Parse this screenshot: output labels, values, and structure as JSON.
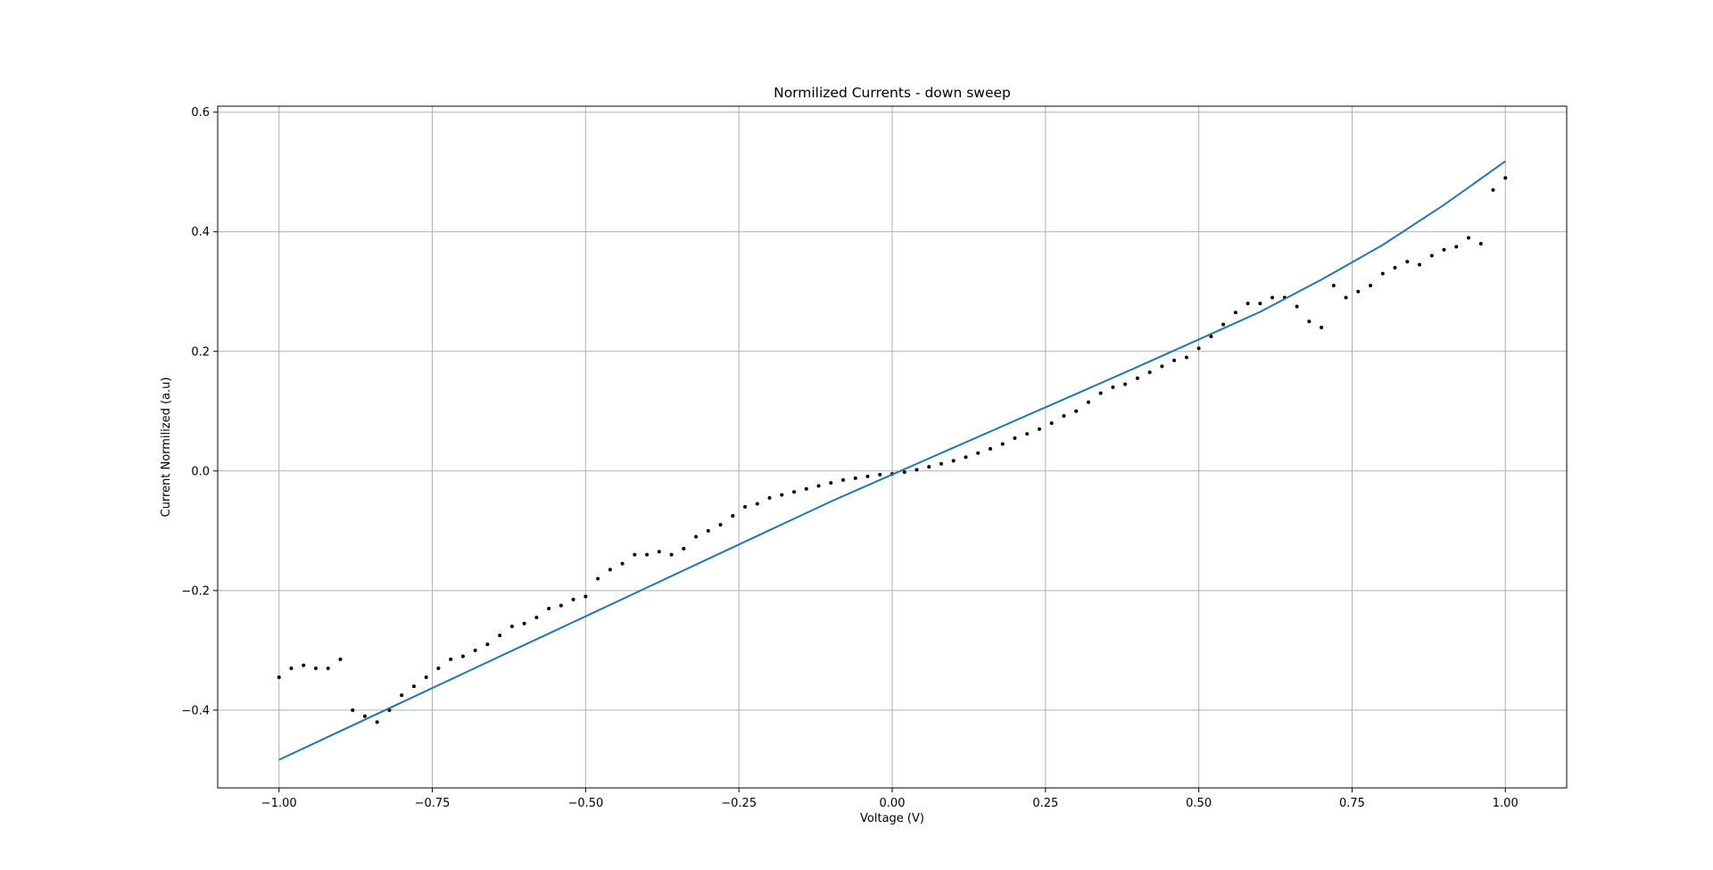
{
  "chart_data": {
    "type": "scatter",
    "title": "Normilized Currents - down sweep",
    "xlabel": "Voltage (V)",
    "ylabel": "Current Normilized (a.u)",
    "xlim": [
      -1.1,
      1.1
    ],
    "ylim": [
      -0.53,
      0.61
    ],
    "xticks": [
      -1.0,
      -0.75,
      -0.5,
      -0.25,
      0.0,
      0.25,
      0.5,
      0.75,
      1.0
    ],
    "xtick_labels": [
      "−1.00",
      "−0.75",
      "−0.50",
      "−0.25",
      "0.00",
      "0.25",
      "0.50",
      "0.75",
      "1.00"
    ],
    "yticks": [
      -0.4,
      -0.2,
      0.0,
      0.2,
      0.4,
      0.6
    ],
    "ytick_labels": [
      "−0.4",
      "−0.2",
      "0.0",
      "0.2",
      "0.4",
      "0.6"
    ],
    "grid": true,
    "series": [
      {
        "type": "scatter",
        "color": "#000000",
        "x": [
          -1.0,
          -0.98,
          -0.96,
          -0.94,
          -0.92,
          -0.9,
          -0.88,
          -0.86,
          -0.84,
          -0.82,
          -0.8,
          -0.78,
          -0.76,
          -0.74,
          -0.72,
          -0.7,
          -0.68,
          -0.66,
          -0.64,
          -0.62,
          -0.6,
          -0.58,
          -0.56,
          -0.54,
          -0.52,
          -0.5,
          -0.48,
          -0.46,
          -0.44,
          -0.42,
          -0.4,
          -0.38,
          -0.36,
          -0.34,
          -0.32,
          -0.3,
          -0.28,
          -0.26,
          -0.24,
          -0.22,
          -0.2,
          -0.18,
          -0.16,
          -0.14,
          -0.12,
          -0.1,
          -0.08,
          -0.06,
          -0.04,
          -0.02,
          0.0,
          0.02,
          0.04,
          0.06,
          0.08,
          0.1,
          0.12,
          0.14,
          0.16,
          0.18,
          0.2,
          0.22,
          0.24,
          0.26,
          0.28,
          0.3,
          0.32,
          0.34,
          0.36,
          0.38,
          0.4,
          0.42,
          0.44,
          0.46,
          0.48,
          0.5,
          0.52,
          0.54,
          0.56,
          0.58,
          0.6,
          0.62,
          0.64,
          0.66,
          0.68,
          0.7,
          0.72,
          0.74,
          0.76,
          0.78,
          0.8,
          0.82,
          0.84,
          0.86,
          0.88,
          0.9,
          0.92,
          0.94,
          0.96,
          0.98,
          1.0
        ],
        "y": [
          -0.345,
          -0.33,
          -0.325,
          -0.33,
          -0.33,
          -0.315,
          -0.4,
          -0.41,
          -0.42,
          -0.4,
          -0.375,
          -0.36,
          -0.345,
          -0.33,
          -0.315,
          -0.31,
          -0.3,
          -0.29,
          -0.275,
          -0.26,
          -0.255,
          -0.245,
          -0.23,
          -0.225,
          -0.215,
          -0.21,
          -0.18,
          -0.165,
          -0.155,
          -0.14,
          -0.14,
          -0.135,
          -0.14,
          -0.13,
          -0.11,
          -0.1,
          -0.09,
          -0.075,
          -0.06,
          -0.055,
          -0.045,
          -0.04,
          -0.035,
          -0.03,
          -0.025,
          -0.02,
          -0.015,
          -0.012,
          -0.009,
          -0.006,
          -0.005,
          -0.002,
          0.002,
          0.007,
          0.012,
          0.017,
          0.023,
          0.03,
          0.037,
          0.045,
          0.055,
          0.062,
          0.07,
          0.08,
          0.092,
          0.1,
          0.115,
          0.13,
          0.14,
          0.145,
          0.155,
          0.165,
          0.175,
          0.185,
          0.19,
          0.205,
          0.225,
          0.245,
          0.265,
          0.28,
          0.28,
          0.29,
          0.29,
          0.275,
          0.25,
          0.24,
          0.31,
          0.29,
          0.3,
          0.31,
          0.33,
          0.34,
          0.35,
          0.345,
          0.36,
          0.37,
          0.375,
          0.39,
          0.38,
          0.47,
          0.49
        ]
      },
      {
        "type": "line",
        "color": "#1f77b4",
        "x": [
          -1.0,
          -0.9,
          -0.8,
          -0.7,
          -0.6,
          -0.5,
          -0.4,
          -0.3,
          -0.2,
          -0.1,
          0.0,
          0.1,
          0.2,
          0.3,
          0.4,
          0.5,
          0.6,
          0.7,
          0.8,
          0.9,
          1.0
        ],
        "y": [
          -0.483,
          -0.435,
          -0.387,
          -0.339,
          -0.291,
          -0.243,
          -0.195,
          -0.147,
          -0.099,
          -0.051,
          -0.006,
          0.039,
          0.084,
          0.129,
          0.174,
          0.22,
          0.266,
          0.32,
          0.378,
          0.445,
          0.518
        ]
      }
    ]
  }
}
